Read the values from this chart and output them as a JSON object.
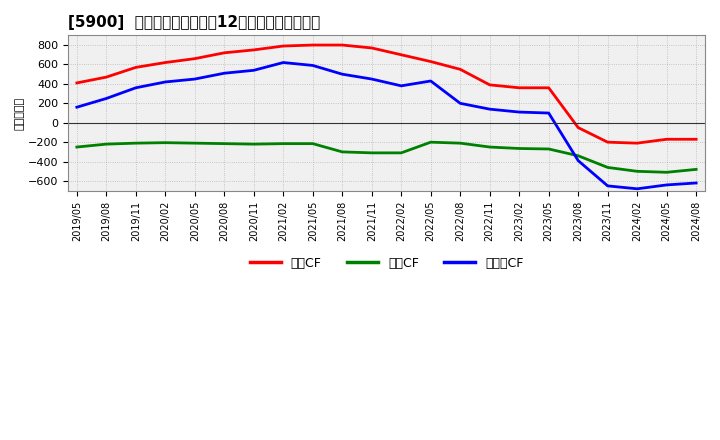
{
  "title": "[5900]  キャッシュフローの12か月移動合計の推移",
  "ylabel": "（百万円）",
  "x_labels": [
    "2019/05",
    "2019/08",
    "2019/11",
    "2020/02",
    "2020/05",
    "2020/08",
    "2020/11",
    "2021/02",
    "2021/05",
    "2021/08",
    "2021/11",
    "2022/02",
    "2022/05",
    "2022/08",
    "2022/11",
    "2023/02",
    "2023/05",
    "2023/08",
    "2023/11",
    "2024/02",
    "2024/05",
    "2024/08"
  ],
  "operating_cf": [
    410,
    470,
    570,
    620,
    660,
    720,
    750,
    790,
    800,
    800,
    770,
    700,
    630,
    550,
    390,
    360,
    360,
    -50,
    -200,
    -210,
    -170,
    -170
  ],
  "investing_cf": [
    -250,
    -220,
    -210,
    -205,
    -210,
    -215,
    -220,
    -215,
    -215,
    -300,
    -310,
    -310,
    -200,
    -210,
    -250,
    -265,
    -270,
    -340,
    -460,
    -500,
    -510,
    -480
  ],
  "free_cf": [
    160,
    250,
    360,
    420,
    450,
    510,
    540,
    620,
    590,
    500,
    450,
    380,
    430,
    200,
    140,
    110,
    100,
    -390,
    -650,
    -680,
    -640,
    -620
  ],
  "operating_color": "#ff0000",
  "investing_color": "#008000",
  "free_color": "#0000ff",
  "ylim": [
    -700,
    900
  ],
  "yticks": [
    -600,
    -400,
    -200,
    0,
    200,
    400,
    600,
    800
  ],
  "background_color": "#f0f0f0",
  "grid_color": "#aaaaaa",
  "legend_labels": [
    "営業CF",
    "投資CF",
    "フリーCF"
  ]
}
